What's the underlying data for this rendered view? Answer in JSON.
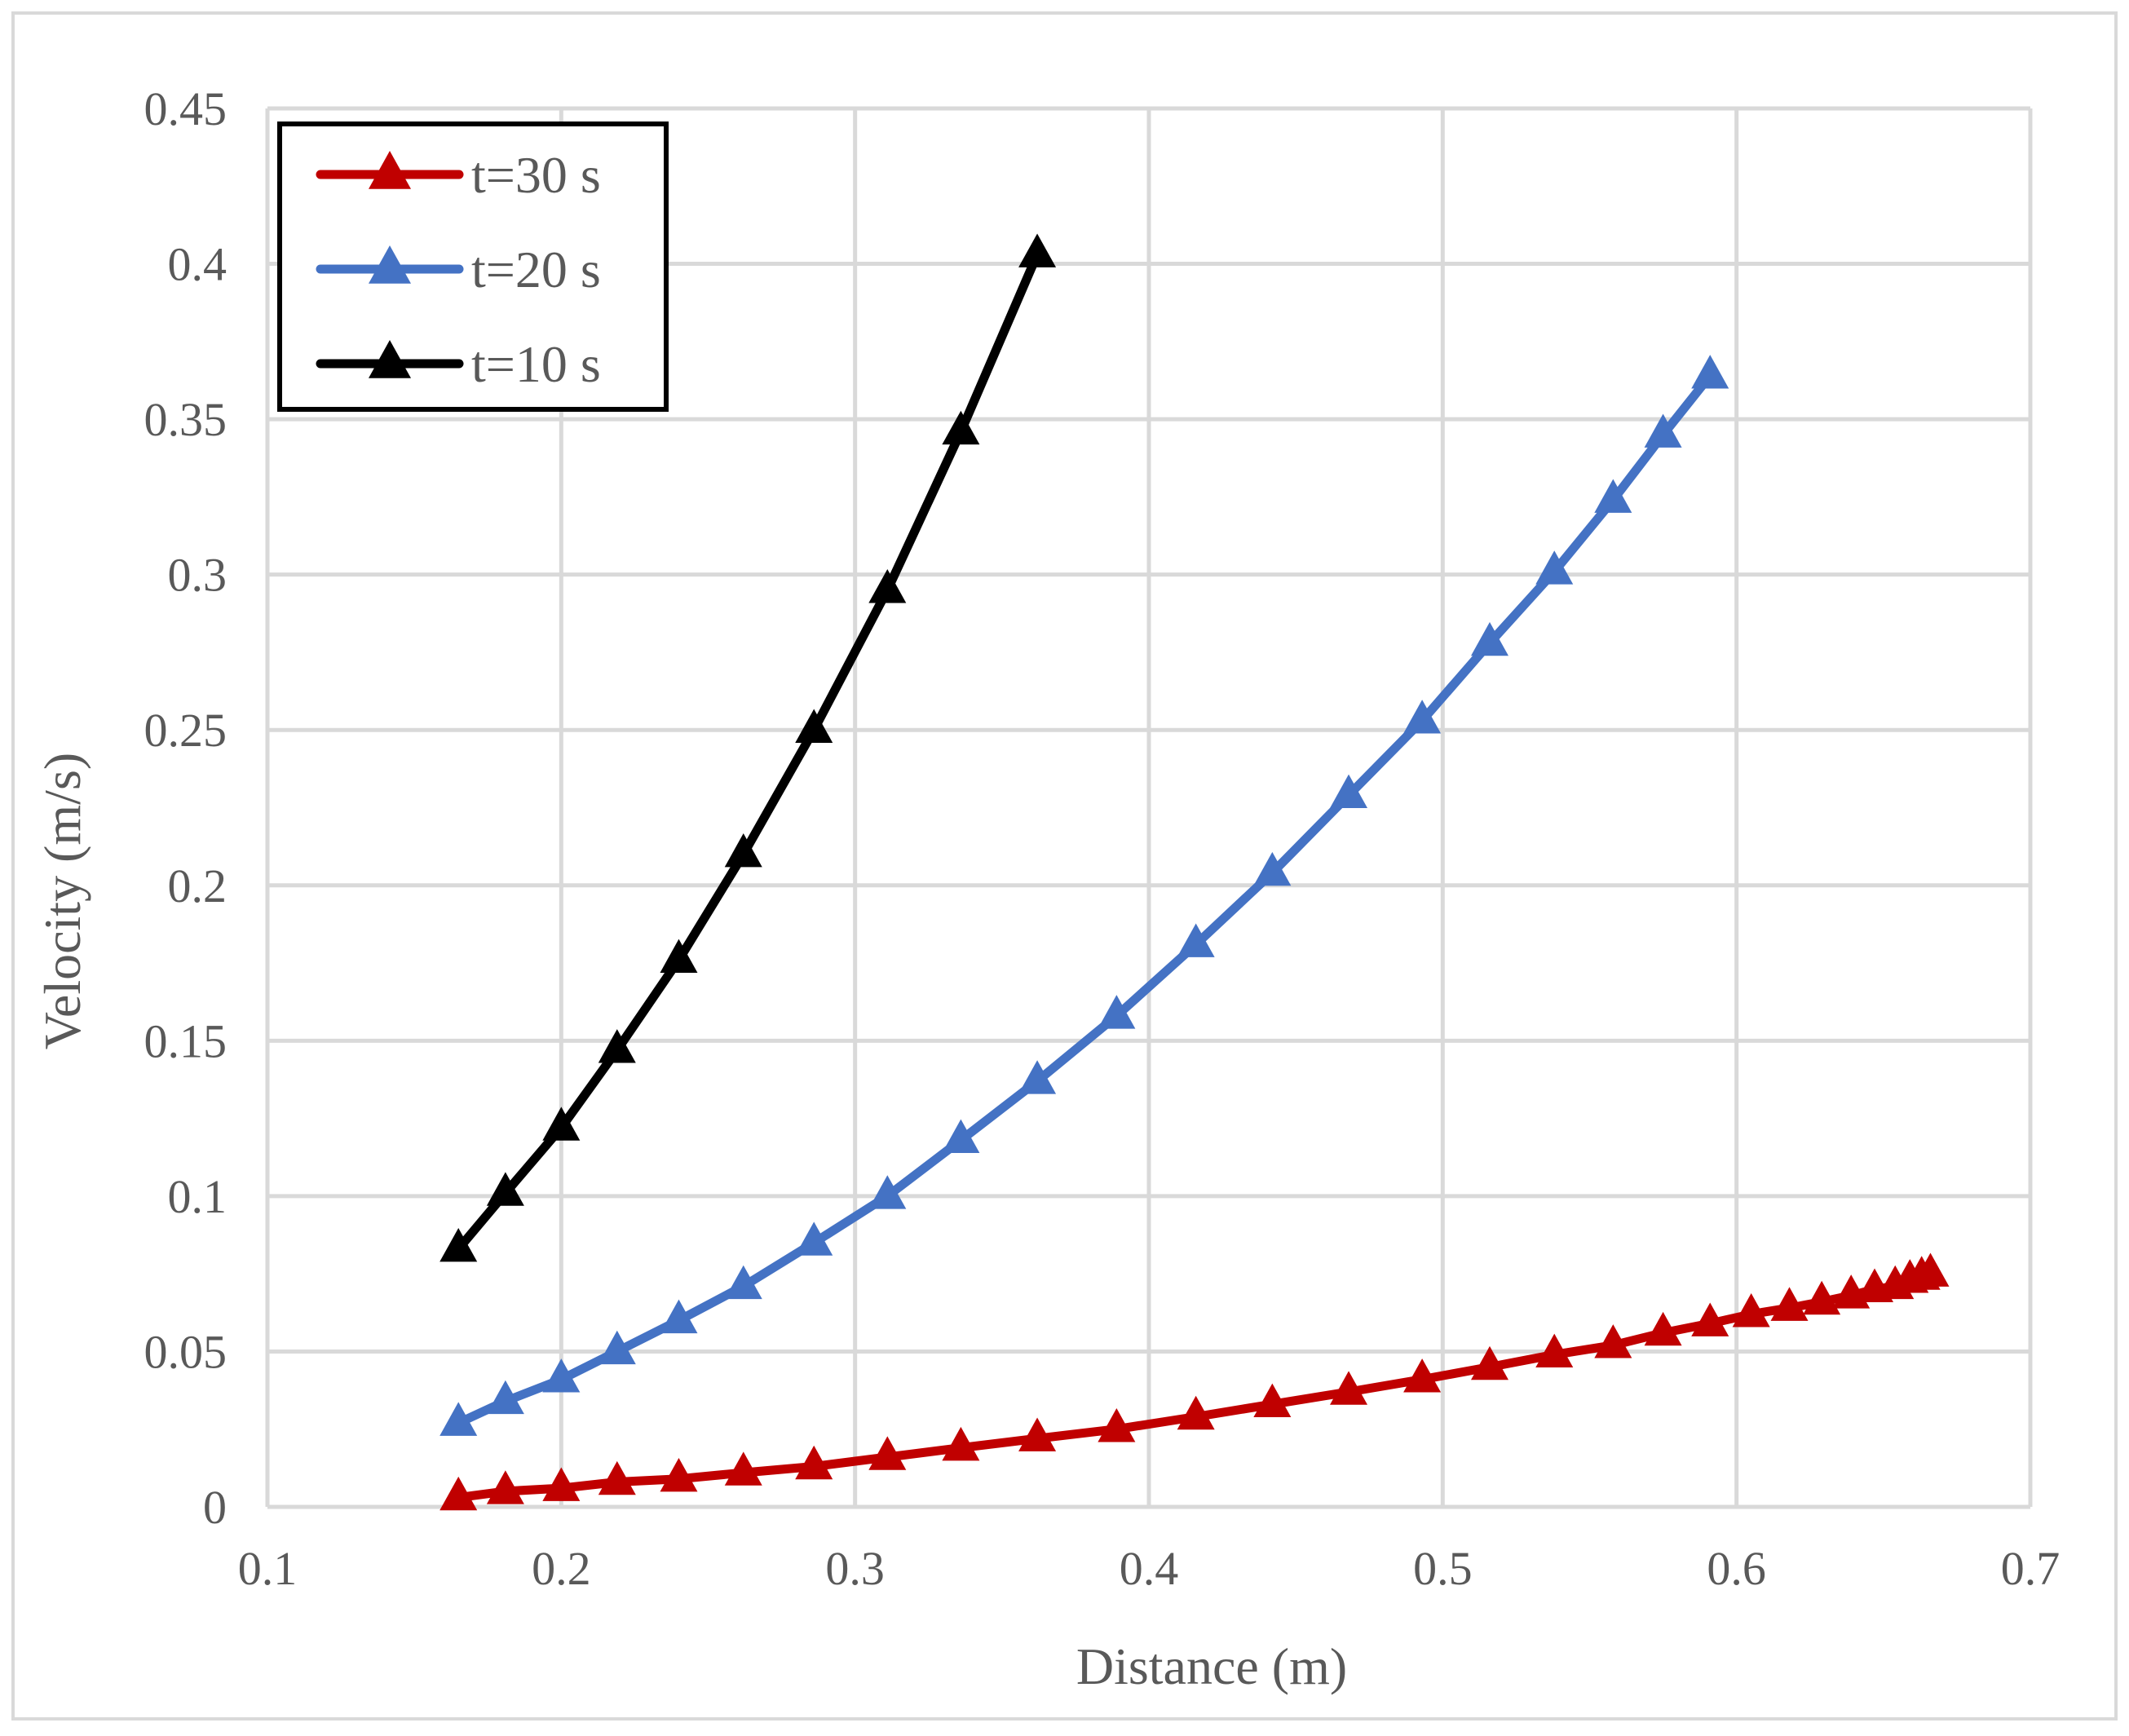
{
  "chart_data": {
    "type": "line",
    "title": "",
    "xlabel": "Distance (m)",
    "ylabel": "Velocity (m/s)",
    "xlim": [
      0.1,
      0.7
    ],
    "ylim": [
      0,
      0.45
    ],
    "xticks": [
      0.1,
      0.2,
      0.3,
      0.4,
      0.5,
      0.6,
      0.7
    ],
    "xtick_labels": [
      "0.1",
      "0.2",
      "0.3",
      "0.4",
      "0.5",
      "0.6",
      "0.7"
    ],
    "yticks": [
      0,
      0.05,
      0.1,
      0.15,
      0.2,
      0.25,
      0.3,
      0.35,
      0.4,
      0.45
    ],
    "ytick_labels": [
      "0",
      "0.05",
      "0.1",
      "0.15",
      "0.2",
      "0.25",
      "0.3",
      "0.35",
      "0.4",
      "0.45"
    ],
    "grid": true,
    "legend_position": "top-left",
    "series": [
      {
        "name": "t=30 s",
        "color": "#C00000",
        "marker": "triangle",
        "points": [
          [
            0.165,
            0.003
          ],
          [
            0.181,
            0.005
          ],
          [
            0.2,
            0.006
          ],
          [
            0.219,
            0.008
          ],
          [
            0.24,
            0.009
          ],
          [
            0.262,
            0.011
          ],
          [
            0.286,
            0.013
          ],
          [
            0.311,
            0.016
          ],
          [
            0.336,
            0.019
          ],
          [
            0.362,
            0.022
          ],
          [
            0.389,
            0.025
          ],
          [
            0.416,
            0.029
          ],
          [
            0.442,
            0.033
          ],
          [
            0.468,
            0.037
          ],
          [
            0.493,
            0.041
          ],
          [
            0.516,
            0.045
          ],
          [
            0.538,
            0.049
          ],
          [
            0.558,
            0.052
          ],
          [
            0.575,
            0.056
          ],
          [
            0.591,
            0.059
          ],
          [
            0.605,
            0.062
          ],
          [
            0.618,
            0.064
          ],
          [
            0.629,
            0.066
          ],
          [
            0.639,
            0.068
          ],
          [
            0.647,
            0.07
          ],
          [
            0.654,
            0.071
          ],
          [
            0.659,
            0.073
          ],
          [
            0.663,
            0.074
          ],
          [
            0.666,
            0.075
          ]
        ]
      },
      {
        "name": "t=20 s",
        "color": "#4472C4",
        "marker": "triangle",
        "points": [
          [
            0.165,
            0.027
          ],
          [
            0.181,
            0.034
          ],
          [
            0.2,
            0.041
          ],
          [
            0.219,
            0.05
          ],
          [
            0.24,
            0.06
          ],
          [
            0.262,
            0.071
          ],
          [
            0.286,
            0.085
          ],
          [
            0.311,
            0.1
          ],
          [
            0.336,
            0.118
          ],
          [
            0.362,
            0.137
          ],
          [
            0.389,
            0.158
          ],
          [
            0.416,
            0.181
          ],
          [
            0.442,
            0.204
          ],
          [
            0.468,
            0.229
          ],
          [
            0.493,
            0.253
          ],
          [
            0.516,
            0.278
          ],
          [
            0.538,
            0.301
          ],
          [
            0.558,
            0.324
          ],
          [
            0.575,
            0.345
          ],
          [
            0.591,
            0.364
          ]
        ]
      },
      {
        "name": "t=10 s",
        "color": "#000000",
        "marker": "triangle",
        "points": [
          [
            0.165,
            0.083
          ],
          [
            0.181,
            0.101
          ],
          [
            0.2,
            0.122
          ],
          [
            0.219,
            0.147
          ],
          [
            0.24,
            0.176
          ],
          [
            0.262,
            0.21
          ],
          [
            0.286,
            0.25
          ],
          [
            0.311,
            0.295
          ],
          [
            0.336,
            0.346
          ],
          [
            0.362,
            0.403
          ]
        ]
      }
    ]
  }
}
